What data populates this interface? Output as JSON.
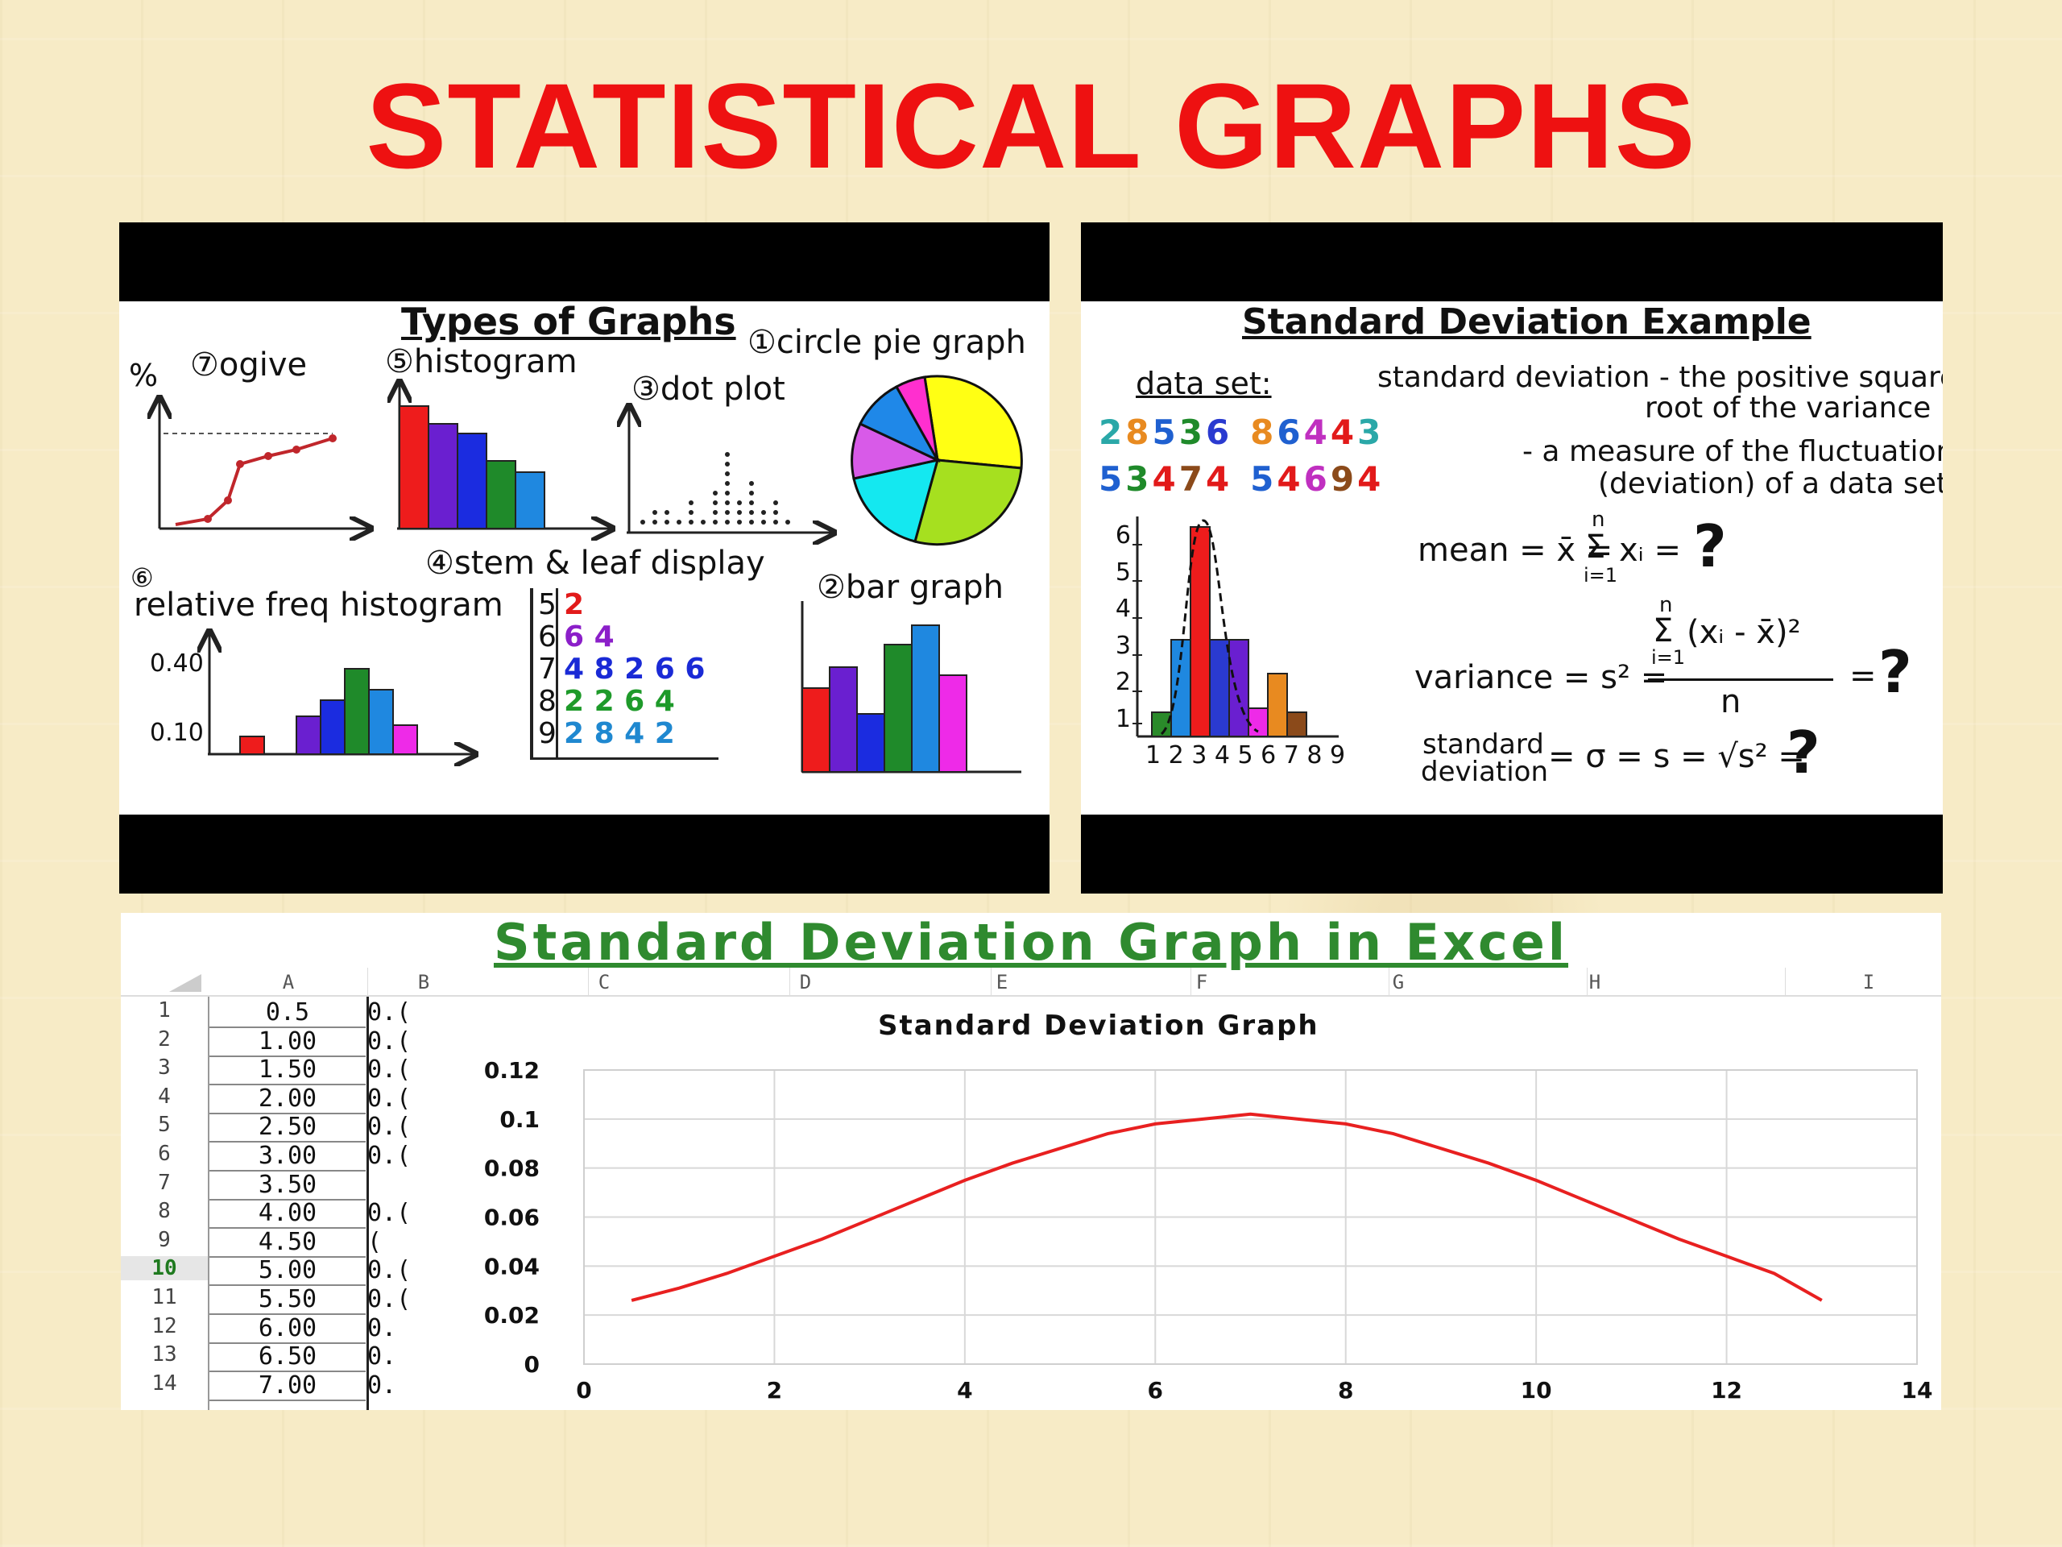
{
  "title": "STATISTICAL GRAPHS",
  "types_panel": {
    "heading": "Types of Graphs",
    "ogive": "⑦ogive",
    "percent": "%",
    "histogram": "⑤histogram",
    "circle_pie": "①circle pie graph",
    "dot_plot": "③dot plot",
    "stem_leaf": "④stem & leaf display",
    "rel_num": "⑥",
    "rel_hist": "relative freq histogram",
    "bar_graph": "②bar graph",
    "y040": "0.40",
    "y010": "0.10",
    "stems": [
      "5",
      "6",
      "7",
      "8",
      "9"
    ],
    "leaves": [
      "2",
      "6 4",
      "4 8 2 6 6",
      "2 2 6 4",
      "2 8 4 2"
    ]
  },
  "sd_panel": {
    "heading": "Standard Deviation Example",
    "data_set_label": "data set:",
    "row1": [
      "2",
      "8",
      "5",
      "3",
      "6",
      "8",
      "6",
      "4",
      "4",
      "3"
    ],
    "row2": [
      "5",
      "3",
      "4",
      "7",
      "4",
      "5",
      "4",
      "6",
      "9",
      "4"
    ],
    "def1": "standard deviation - the positive square",
    "def2": "root of the variance",
    "def3": "- a measure of the fluctuation",
    "def4": "(deviation) of a data set",
    "mean_label": "mean = x̄ =",
    "sum_top": "n",
    "sum_bottom": "i=1",
    "mean_term": "xᵢ =",
    "variance_label": "variance = s² =",
    "variance_num": "(xᵢ - x̄)²",
    "variance_den": "n",
    "sd_label1": "standard",
    "sd_label2": "deviation",
    "sd_expr": "= σ = s = √s² =",
    "q": "?",
    "yticks": [
      "1",
      "2",
      "3",
      "4",
      "5",
      "6"
    ],
    "xticks": "1 2 3 4 5 6 7 8 9"
  },
  "excel": {
    "title": "Standard Deviation Graph in Excel",
    "columns": [
      "A",
      "B",
      "C",
      "D",
      "E",
      "F",
      "G",
      "H",
      "I"
    ],
    "rows": [
      "1",
      "2",
      "3",
      "4",
      "5",
      "6",
      "7",
      "8",
      "9",
      "10",
      "11",
      "12",
      "13",
      "14"
    ],
    "colA": [
      "0.5",
      "1.00",
      "1.50",
      "2.00",
      "2.50",
      "3.00",
      "3.50",
      "4.00",
      "4.50",
      "5.00",
      "5.50",
      "6.00",
      "6.50",
      "7.00"
    ],
    "colB": [
      "0.(",
      "0.(",
      "0.(",
      "0.(",
      "0.(",
      "0.(",
      "",
      "0.(",
      "(",
      "0.(",
      "0.(",
      "0.",
      "0.",
      "0."
    ]
  },
  "chart_data": {
    "type": "line",
    "title": "Standard Deviation Graph",
    "xlim": [
      0,
      14
    ],
    "ylim": [
      0,
      0.12
    ],
    "xticks": [
      "0",
      "2",
      "4",
      "6",
      "8",
      "10",
      "12",
      "14"
    ],
    "yticks": [
      "0",
      "0.02",
      "0.04",
      "0.06",
      "0.08",
      "0.1",
      "0.12"
    ],
    "grid": true,
    "series": [
      {
        "color": "#e82020",
        "x": [
          0.5,
          1,
          1.5,
          2,
          2.5,
          3,
          3.5,
          4,
          4.5,
          5,
          5.5,
          6,
          6.5,
          7,
          7.5,
          8,
          8.5,
          9,
          9.5,
          10,
          10.5,
          11,
          11.5,
          12,
          12.5,
          13
        ],
        "y": [
          0.026,
          0.031,
          0.037,
          0.044,
          0.051,
          0.059,
          0.067,
          0.075,
          0.082,
          0.088,
          0.094,
          0.098,
          0.1,
          0.102,
          0.1,
          0.098,
          0.094,
          0.088,
          0.082,
          0.075,
          0.067,
          0.059,
          0.051,
          0.044,
          0.037,
          0.026
        ]
      }
    ]
  }
}
